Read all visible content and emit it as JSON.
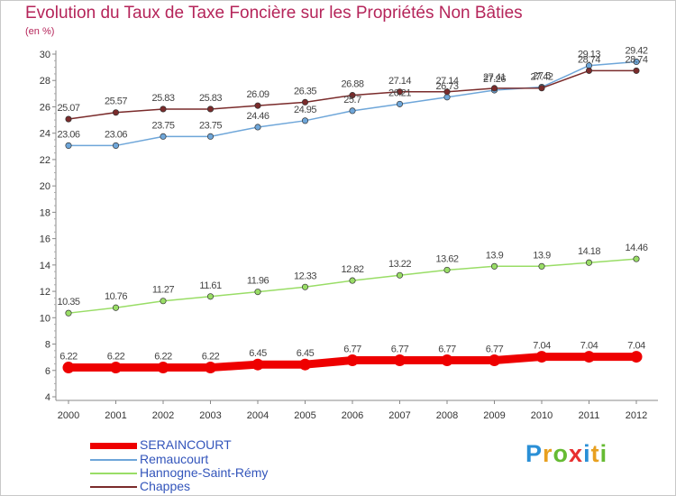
{
  "chart_data": {
    "type": "line",
    "title": "Evolution du Taux de Taxe Foncière sur les Propriétés Non Bâties",
    "ylabel": "(en %)",
    "xlabel": "",
    "x": [
      "2000",
      "2001",
      "2002",
      "2003",
      "2004",
      "2005",
      "2006",
      "2007",
      "2008",
      "2009",
      "2010",
      "2011",
      "2012"
    ],
    "ylim": [
      4,
      30
    ],
    "yticks": [
      "4",
      "6",
      "8",
      "10",
      "12",
      "14",
      "16",
      "18",
      "20",
      "22",
      "24",
      "26",
      "28",
      "30"
    ],
    "grid": false,
    "legend_position": "bottom-left",
    "series": [
      {
        "name": "SERAINCOURT",
        "color": "#ee0000",
        "values": [
          6.22,
          6.22,
          6.22,
          6.22,
          6.45,
          6.45,
          6.77,
          6.77,
          6.77,
          6.77,
          7.04,
          7.04,
          7.04
        ],
        "labels": [
          "6.22",
          "6.22",
          "6.22",
          "6.22",
          "6.45",
          "6.45",
          "6.77",
          "6.77",
          "6.77",
          "6.77",
          "7.04",
          "7.04",
          "7.04"
        ]
      },
      {
        "name": "Remaucourt",
        "color": "#6ea6d9",
        "values": [
          23.06,
          23.06,
          23.75,
          23.75,
          24.46,
          24.95,
          25.7,
          26.21,
          26.73,
          27.26,
          27.5,
          29.13,
          29.42
        ],
        "labels": [
          "23.06",
          "23.06",
          "23.75",
          "23.75",
          "24.46",
          "24.95",
          "25.7",
          "26.21",
          "26.73",
          "27.26",
          "27.5",
          "29.13",
          "29.42"
        ]
      },
      {
        "name": "Hannogne-Saint-Rémy",
        "color": "#99dd66",
        "values": [
          10.35,
          10.76,
          11.27,
          11.61,
          11.96,
          12.33,
          12.82,
          13.22,
          13.62,
          13.9,
          13.9,
          14.18,
          14.46
        ],
        "labels": [
          "10.35",
          "10.76",
          "11.27",
          "11.61",
          "11.96",
          "12.33",
          "12.82",
          "13.22",
          "13.62",
          "13.9",
          "13.9",
          "14.18",
          "14.46"
        ]
      },
      {
        "name": "Chappes",
        "color": "#7a2b2b",
        "values": [
          25.07,
          25.57,
          25.83,
          25.83,
          26.09,
          26.35,
          26.88,
          27.14,
          27.14,
          27.41,
          27.42,
          28.74,
          28.74
        ],
        "labels": [
          "25.07",
          "25.57",
          "25.83",
          "25.83",
          "26.09",
          "26.35",
          "26.88",
          "27.14",
          "27.14",
          "27.41",
          "27.42",
          "28.74",
          "28.74"
        ]
      }
    ]
  },
  "logo": {
    "letters": [
      "P",
      "r",
      "o",
      "x",
      "i",
      "t",
      "i"
    ],
    "colors": [
      "#2a8fd6",
      "#e8a020",
      "#66bb33",
      "#e83030",
      "#2a8fd6",
      "#e8a020",
      "#66bb33"
    ]
  }
}
